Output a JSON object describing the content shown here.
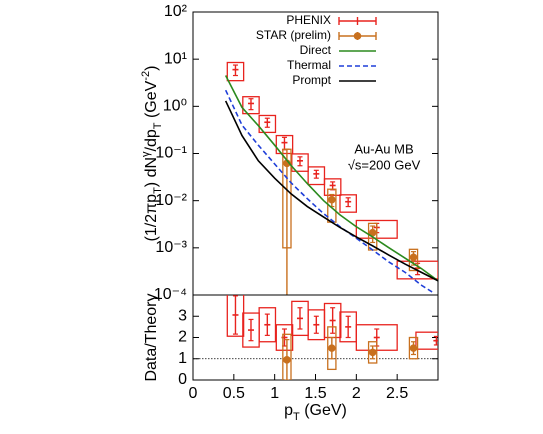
{
  "chart_data": [
    {
      "type": "errorbar",
      "log": true,
      "ylabel": [
        {
          "text": "(1/2πp"
        },
        {
          "text": "T",
          "shift": "sub"
        },
        {
          "text": ") dN"
        },
        {
          "text": "γ",
          "shift": "sup"
        },
        {
          "text": "/dp"
        },
        {
          "text": "T",
          "shift": "sub"
        },
        {
          "text": " (GeV"
        },
        {
          "text": "-2",
          "shift": "sup"
        },
        {
          "text": ")"
        }
      ],
      "annotations": [
        "Au-Au MB",
        "√s=200 GeV"
      ],
      "xlim": [
        0,
        3
      ],
      "ylim": [
        0.0001,
        100
      ],
      "yticks": [
        {
          "value": 100,
          "label": "10²"
        },
        {
          "value": 10,
          "label": "10¹"
        },
        {
          "value": 1,
          "label": "10⁰"
        },
        {
          "value": 0.1,
          "label": "10⁻¹"
        },
        {
          "value": 0.01,
          "label": "10⁻²"
        },
        {
          "value": 0.001,
          "label": "10⁻³"
        },
        {
          "value": 0.0001,
          "label": "10⁻⁴"
        }
      ],
      "legend": "upper right",
      "series": [
        {
          "name": "PHENIX",
          "kind": "box",
          "color": "#e8231e",
          "x": [
            0.52,
            0.71,
            0.91,
            1.12,
            1.31,
            1.51,
            1.71,
            1.9,
            2.25,
            2.75
          ],
          "values": [
            6,
            1.15,
            0.46,
            0.17,
            0.07,
            0.037,
            0.021,
            0.0095,
            0.0027,
            0.00037
          ],
          "errors": [
            1.5,
            0.3,
            0.1,
            0.05,
            0.015,
            0.007,
            0.004,
            0.002,
            0.0006,
            0.0001
          ],
          "sys": [
            2.5,
            0.45,
            0.18,
            0.07,
            0.028,
            0.015,
            0.008,
            0.0038,
            0.0011,
            0.00015
          ],
          "xerr": [
            0.1,
            0.1,
            0.1,
            0.1,
            0.1,
            0.1,
            0.1,
            0.1,
            0.25,
            0.25
          ]
        },
        {
          "name": "STAR (prelim)",
          "kind": "dot",
          "color": "#c8701e",
          "x": [
            1.15,
            1.7,
            2.2,
            2.7
          ],
          "values": [
            0.062,
            0.0105,
            0.0021,
            0.00063
          ],
          "errors": [
            0.062,
            0.003,
            0.0008,
            0.0002
          ],
          "sys": [
            0.061,
            0.007,
            0.0012,
            0.0003
          ],
          "xerr": [
            0.05,
            0.05,
            0.05,
            0.05
          ]
        },
        {
          "name": "Direct",
          "kind": "line",
          "color": "#2b8a1e",
          "x": [
            0.4,
            0.6,
            0.8,
            1.0,
            1.2,
            1.4,
            1.6,
            1.8,
            2.0,
            2.2,
            2.4,
            2.6,
            2.8,
            3.0
          ],
          "values": [
            4.5,
            0.95,
            0.39,
            0.15,
            0.056,
            0.023,
            0.01,
            0.005,
            0.0028,
            0.0017,
            0.001,
            0.0006,
            0.00036,
            0.0002
          ]
        },
        {
          "name": "Thermal",
          "kind": "line",
          "dash": true,
          "color": "#1f3fd8",
          "x": [
            0.4,
            0.6,
            0.8,
            1.0,
            1.2,
            1.4,
            1.6,
            1.8,
            2.0,
            2.2,
            2.4,
            2.6,
            2.8,
            2.95
          ],
          "values": [
            2.2,
            0.4,
            0.15,
            0.06,
            0.024,
            0.011,
            0.0053,
            0.0028,
            0.0016,
            0.0009,
            0.0005,
            0.0003,
            0.00016,
            0.00011
          ]
        },
        {
          "name": "Prompt",
          "kind": "line",
          "color": "#000000",
          "x": [
            0.4,
            0.6,
            0.8,
            1.0,
            1.2,
            1.4,
            1.6,
            1.8,
            2.0,
            2.2,
            2.4,
            2.6,
            2.8,
            3.0
          ],
          "values": [
            1.3,
            0.24,
            0.07,
            0.03,
            0.014,
            0.0075,
            0.0045,
            0.0027,
            0.0017,
            0.0011,
            0.0007,
            0.00045,
            0.0003,
            0.0002
          ]
        }
      ]
    },
    {
      "type": "errorbar",
      "log": false,
      "ylabel": [
        {
          "text": "Data/Theory"
        }
      ],
      "xlabel": [
        {
          "text": "p"
        },
        {
          "text": "T",
          "shift": "sub"
        },
        {
          "text": " (GeV)"
        }
      ],
      "xlim": [
        0,
        3
      ],
      "ylim": [
        0,
        4
      ],
      "yticks": [
        0,
        1,
        2,
        3
      ],
      "xticks": [
        0,
        0.5,
        1,
        1.5,
        2,
        2.5
      ],
      "reference": 1,
      "series": [
        {
          "kind": "box",
          "color": "#e8231e",
          "x": [
            0.52,
            0.71,
            0.91,
            1.12,
            1.31,
            1.51,
            1.71,
            1.9,
            2.25,
            2.98
          ],
          "values": [
            3.06,
            2.35,
            2.6,
            2.0,
            2.9,
            2.6,
            2.8,
            2.5,
            2.0,
            1.85
          ],
          "errors": [
            0.9,
            0.5,
            0.5,
            0.4,
            0.5,
            0.4,
            0.6,
            0.5,
            0.4,
            0.2
          ],
          "sys": [
            1.0,
            0.8,
            0.8,
            0.6,
            0.8,
            0.7,
            0.8,
            0.7,
            0.6,
            0.4
          ],
          "xerr": [
            0.1,
            0.1,
            0.1,
            0.1,
            0.1,
            0.1,
            0.1,
            0.1,
            0.25,
            0.25
          ]
        },
        {
          "kind": "dot",
          "color": "#c8701e",
          "x": [
            1.15,
            1.7,
            2.2,
            2.7
          ],
          "values": [
            0.95,
            1.5,
            1.3,
            1.5
          ],
          "errors": [
            0.95,
            0.5,
            0.3,
            0.3
          ],
          "sys": [
            1.2,
            1.0,
            0.5,
            0.5
          ],
          "xerr": [
            0.05,
            0.05,
            0.05,
            0.05
          ]
        }
      ]
    }
  ]
}
